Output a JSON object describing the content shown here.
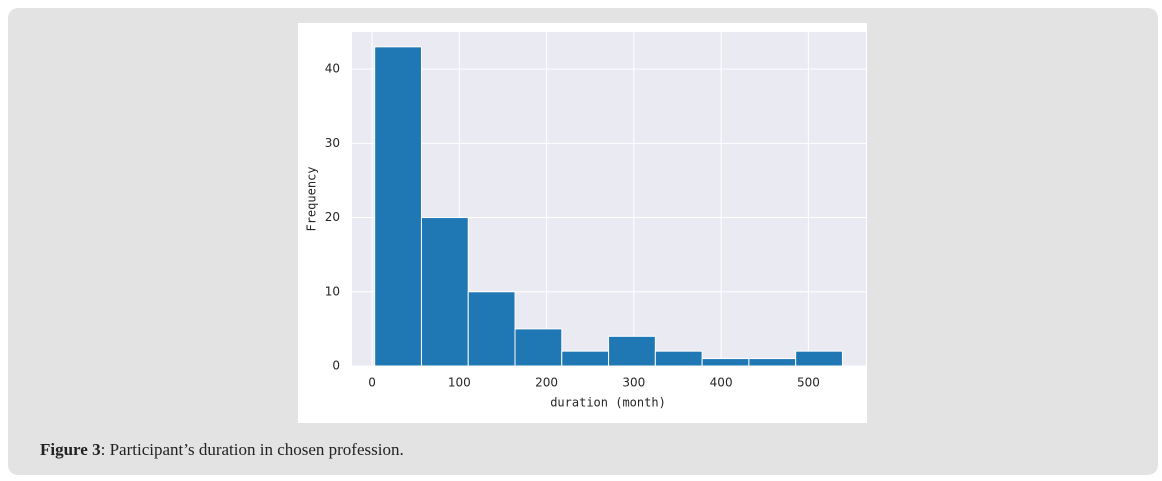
{
  "chart_data": {
    "type": "histogram",
    "x_label": "duration (month)",
    "y_label": "Frequency",
    "bins": [
      3,
      56.6,
      110.2,
      163.8,
      217.4,
      271,
      324.6,
      378.2,
      431.8,
      485.4,
      539
    ],
    "values": [
      43,
      20,
      10,
      5,
      2,
      4,
      2,
      1,
      1,
      2
    ],
    "color": "#1f77b4",
    "xlim": [
      -23,
      566
    ],
    "xticks": [
      0,
      100,
      200,
      300,
      400,
      500
    ],
    "ylim": [
      0,
      45
    ],
    "yticks": [
      0,
      10,
      20,
      30,
      40
    ],
    "grid": true
  },
  "caption": {
    "label": "Figure 3",
    "text": ": Participant’s duration in chosen profession."
  }
}
